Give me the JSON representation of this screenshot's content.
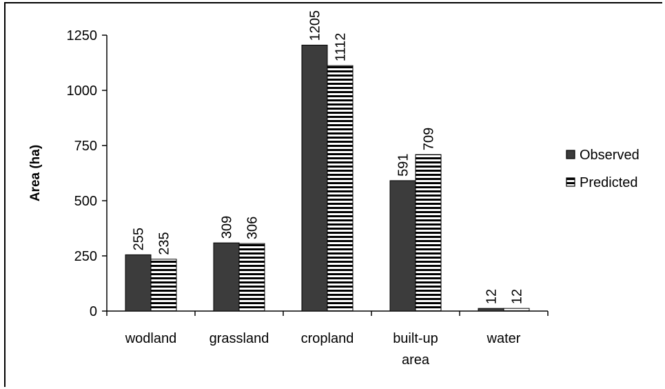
{
  "chart_data": {
    "type": "bar",
    "title": "",
    "xlabel": "",
    "ylabel": "Area (ha)",
    "ylim": [
      0,
      1250
    ],
    "yticks": [
      0,
      250,
      500,
      750,
      1000,
      1250
    ],
    "categories": [
      [
        "wodland"
      ],
      [
        "grassland"
      ],
      [
        "cropland"
      ],
      [
        "built-up",
        "area"
      ],
      [
        "water"
      ]
    ],
    "series": [
      {
        "name": "Observed",
        "values": [
          255,
          309,
          1205,
          591,
          12
        ],
        "color": "#3c3c3c",
        "pattern": "solid"
      },
      {
        "name": "Predicted",
        "values": [
          235,
          306,
          1112,
          709,
          12
        ],
        "color": "#000000",
        "pattern": "horizontal-stripes"
      }
    ],
    "grid": false,
    "legend": "right",
    "data_labels": true
  }
}
